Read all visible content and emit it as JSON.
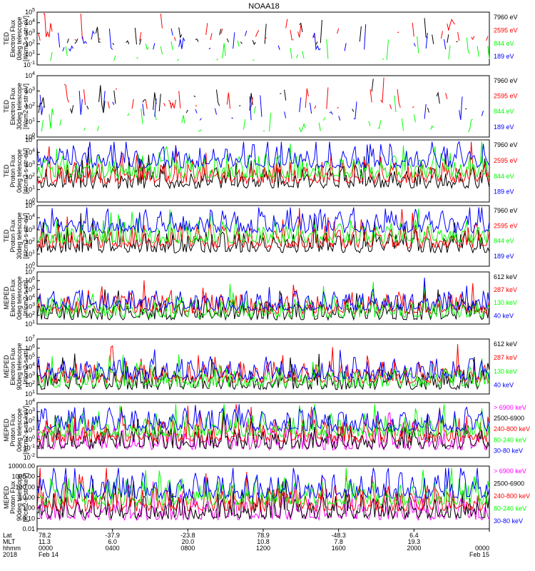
{
  "title": "NOAA18",
  "colors": {
    "black": "#000000",
    "red": "#ff0000",
    "green": "#00ff00",
    "blue": "#0000ff",
    "magenta": "#ff00ff"
  },
  "chart_data": [
    {
      "type": "line",
      "instrument": "TED",
      "ylabel_lines": [
        "TED",
        "Electron Flux",
        "0deg telescope",
        "[#/cm2-s-str-eV]"
      ],
      "ytick_labels": [
        "10^-1",
        "10^1",
        "10^2",
        "10^3",
        "10^4",
        "10^5"
      ],
      "ylim_exp": [
        -1,
        5
      ],
      "log_scale": true,
      "series": [
        {
          "name": "7960 eV",
          "color": "black"
        },
        {
          "name": "2595 eV",
          "color": "red"
        },
        {
          "name": "844 eV",
          "color": "green"
        },
        {
          "name": "189 eV",
          "color": "blue"
        }
      ]
    },
    {
      "type": "line",
      "instrument": "TED",
      "ylabel_lines": [
        "TED",
        "Electron Flux",
        "30deg telescope",
        "[#/cm2-s-str-eV]"
      ],
      "ytick_labels": [
        "10^0",
        "10^1",
        "10^2",
        "10^3",
        "10^4"
      ],
      "ylim_exp": [
        0,
        4
      ],
      "log_scale": true,
      "series": [
        {
          "name": "7960 eV",
          "color": "black"
        },
        {
          "name": "2595 eV",
          "color": "red"
        },
        {
          "name": "844 eV",
          "color": "green"
        },
        {
          "name": "189 eV",
          "color": "blue"
        }
      ]
    },
    {
      "type": "line",
      "instrument": "TED",
      "ylabel_lines": [
        "TED",
        "Proton Flux",
        "0deg telescope",
        "[#/cm2-s-str-eV]"
      ],
      "ytick_labels": [
        "10^0",
        "10^1",
        "10^2",
        "10^3",
        "10^4",
        "10^5"
      ],
      "ylim_exp": [
        0,
        5
      ],
      "log_scale": true,
      "series": [
        {
          "name": "7960 eV",
          "color": "black"
        },
        {
          "name": "2595 eV",
          "color": "red"
        },
        {
          "name": "844 eV",
          "color": "green"
        },
        {
          "name": "189 eV",
          "color": "blue"
        }
      ]
    },
    {
      "type": "line",
      "instrument": "TED",
      "ylabel_lines": [
        "TED",
        "Proton Flux",
        "30deg telescope",
        "[#/cm2-s-str-eV]"
      ],
      "ytick_labels": [
        "10^0",
        "10^1",
        "10^2",
        "10^3",
        "10^4",
        "10^5"
      ],
      "ylim_exp": [
        0,
        5
      ],
      "log_scale": true,
      "series": [
        {
          "name": "7960 eV",
          "color": "black"
        },
        {
          "name": "2595 eV",
          "color": "red"
        },
        {
          "name": "844 eV",
          "color": "green"
        },
        {
          "name": "189 eV",
          "color": "blue"
        }
      ]
    },
    {
      "type": "line",
      "instrument": "MEPED",
      "ylabel_lines": [
        "MEPED",
        "Electron Flux",
        "0deg telescope",
        "[#/cm2-s-str]"
      ],
      "ytick_labels": [
        "10^1",
        "10^2",
        "10^3",
        "10^4",
        "10^5",
        "10^6",
        "10^7"
      ],
      "ylim_exp": [
        1,
        7
      ],
      "log_scale": true,
      "series": [
        {
          "name": "612 keV",
          "color": "black"
        },
        {
          "name": "287 keV",
          "color": "red"
        },
        {
          "name": "130 keV",
          "color": "green"
        },
        {
          "name": "40 keV",
          "color": "blue"
        }
      ]
    },
    {
      "type": "line",
      "instrument": "MEPED",
      "ylabel_lines": [
        "MEPED",
        "Electron Flux",
        "90deg telescope",
        "[#/cm2-s-str]"
      ],
      "ytick_labels": [
        "10^1",
        "10^2",
        "10^3",
        "10^4",
        "10^5",
        "10^6",
        "10^7"
      ],
      "ylim_exp": [
        1,
        7
      ],
      "log_scale": true,
      "series": [
        {
          "name": "612 keV",
          "color": "black"
        },
        {
          "name": "287 keV",
          "color": "red"
        },
        {
          "name": "130 keV",
          "color": "green"
        },
        {
          "name": "40 keV",
          "color": "blue"
        }
      ]
    },
    {
      "type": "line",
      "instrument": "MEPED",
      "ylabel_lines": [
        "MEPED",
        "Proton Flux",
        "0deg telescope",
        "[#/cm2-s-str-keV]"
      ],
      "ytick_labels": [
        "10^-2",
        "10^-1",
        "10^0",
        "10^1",
        "10^2",
        "10^3",
        "10^4"
      ],
      "ylim_exp": [
        -2,
        4
      ],
      "log_scale": true,
      "series": [
        {
          "name": "> 6900 keV",
          "color": "magenta"
        },
        {
          "name": "2500-6900",
          "color": "black"
        },
        {
          "name": "240-800 keV",
          "color": "red"
        },
        {
          "name": "80-240 keV",
          "color": "green"
        },
        {
          "name": "30-80 keV",
          "color": "blue"
        }
      ]
    },
    {
      "type": "line",
      "instrument": "MEPED",
      "ylabel_lines": [
        "MEPED",
        "Proton Flux",
        "90deg telescope",
        "[#/cm2-s-str-keV]"
      ],
      "ytick_labels": [
        "0.01",
        "0.10",
        "1.00",
        "10.00",
        "100.00",
        "1000.00",
        "10000.00"
      ],
      "ylim_exp": [
        -2,
        4
      ],
      "log_scale": true,
      "series": [
        {
          "name": "> 6900 keV",
          "color": "magenta"
        },
        {
          "name": "2500-6900",
          "color": "black"
        },
        {
          "name": "240-800 keV",
          "color": "red"
        },
        {
          "name": "80-240 keV",
          "color": "green"
        },
        {
          "name": "30-80 keV",
          "color": "blue"
        }
      ]
    }
  ],
  "xaxis": {
    "row_labels": [
      "Lat",
      "MLT",
      "hhmm",
      "2018"
    ],
    "ticks": [
      {
        "lat": "78.2",
        "mlt": "11.3",
        "hhmm": "0000",
        "date": "Feb 14"
      },
      {
        "lat": "-37.9",
        "mlt": "6.0",
        "hhmm": "0400",
        "date": ""
      },
      {
        "lat": "-23.8",
        "mlt": "20.0",
        "hhmm": "0800",
        "date": ""
      },
      {
        "lat": "78.9",
        "mlt": "10.8",
        "hhmm": "1200",
        "date": ""
      },
      {
        "lat": "-48.3",
        "mlt": "7.8",
        "hhmm": "1600",
        "date": ""
      },
      {
        "lat": "6.4",
        "mlt": "19.3",
        "hhmm": "2000",
        "date": ""
      },
      {
        "lat": "",
        "mlt": "",
        "hhmm": "0000",
        "date": "Feb 15"
      }
    ]
  }
}
